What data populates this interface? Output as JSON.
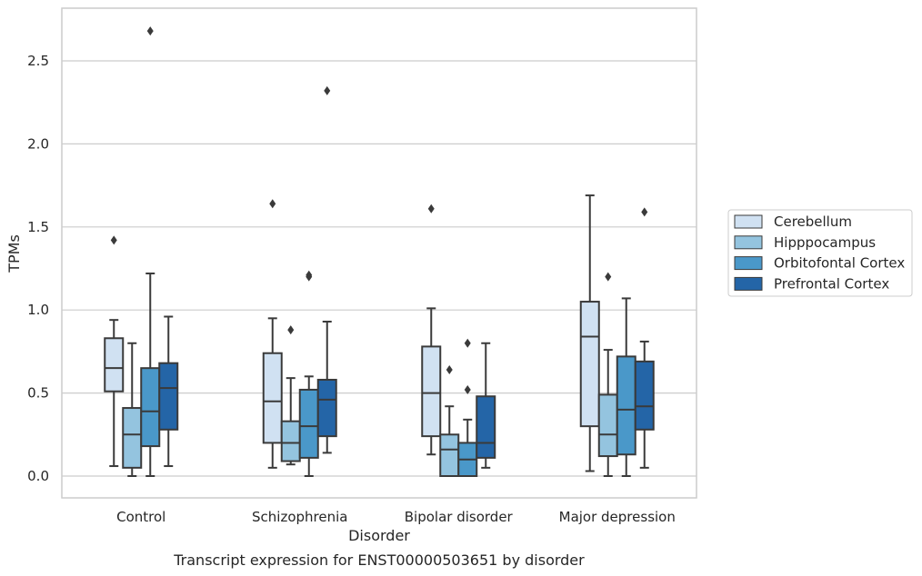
{
  "chart_data": {
    "type": "box",
    "title": "Transcript expression for ENST00000503651 by disorder",
    "xlabel": "Disorder",
    "ylabel": "TPMs",
    "ylim": [
      -0.13,
      2.82
    ],
    "yticks": [
      0.0,
      0.5,
      1.0,
      1.5,
      2.0,
      2.5
    ],
    "ytick_labels": [
      "0.0",
      "0.5",
      "1.0",
      "1.5",
      "2.0",
      "2.5"
    ],
    "grid": "horizontal",
    "legend_position": "right",
    "categories": [
      "Control",
      "Schizophrenia",
      "Bipolar disorder",
      "Major depression"
    ],
    "series": [
      {
        "name": "Cerebellum",
        "color": "#d0e1f2",
        "boxes": [
          {
            "q1": 0.51,
            "median": 0.65,
            "q3": 0.83,
            "whisker_low": 0.06,
            "whisker_high": 0.94,
            "outliers": [
              1.42
            ]
          },
          {
            "q1": 0.2,
            "median": 0.45,
            "q3": 0.74,
            "whisker_low": 0.05,
            "whisker_high": 0.95,
            "outliers": [
              1.64
            ]
          },
          {
            "q1": 0.24,
            "median": 0.5,
            "q3": 0.78,
            "whisker_low": 0.13,
            "whisker_high": 1.01,
            "outliers": [
              1.61
            ]
          },
          {
            "q1": 0.3,
            "median": 0.84,
            "q3": 1.05,
            "whisker_low": 0.03,
            "whisker_high": 1.69,
            "outliers": []
          }
        ]
      },
      {
        "name": "Hipppocampus",
        "color": "#94c4df",
        "boxes": [
          {
            "q1": 0.05,
            "median": 0.25,
            "q3": 0.41,
            "whisker_low": 0.0,
            "whisker_high": 0.8,
            "outliers": []
          },
          {
            "q1": 0.09,
            "median": 0.2,
            "q3": 0.33,
            "whisker_low": 0.07,
            "whisker_high": 0.59,
            "outliers": [
              0.88
            ]
          },
          {
            "q1": 0.0,
            "median": 0.16,
            "q3": 0.25,
            "whisker_low": 0.0,
            "whisker_high": 0.42,
            "outliers": [
              0.64
            ]
          },
          {
            "q1": 0.12,
            "median": 0.25,
            "q3": 0.49,
            "whisker_low": 0.0,
            "whisker_high": 0.76,
            "outliers": [
              1.2
            ]
          }
        ]
      },
      {
        "name": "Orbitofontal Cortex",
        "color": "#4a98c9",
        "boxes": [
          {
            "q1": 0.18,
            "median": 0.39,
            "q3": 0.65,
            "whisker_low": 0.0,
            "whisker_high": 1.22,
            "outliers": [
              2.68
            ]
          },
          {
            "q1": 0.11,
            "median": 0.3,
            "q3": 0.52,
            "whisker_low": 0.0,
            "whisker_high": 0.6,
            "outliers": [
              1.2,
              1.21
            ]
          },
          {
            "q1": 0.0,
            "median": 0.1,
            "q3": 0.2,
            "whisker_low": 0.0,
            "whisker_high": 0.34,
            "outliers": [
              0.52,
              0.8
            ]
          },
          {
            "q1": 0.13,
            "median": 0.4,
            "q3": 0.72,
            "whisker_low": 0.0,
            "whisker_high": 1.07,
            "outliers": []
          }
        ]
      },
      {
        "name": "Prefrontal Cortex",
        "color": "#2465a7",
        "boxes": [
          {
            "q1": 0.28,
            "median": 0.53,
            "q3": 0.68,
            "whisker_low": 0.06,
            "whisker_high": 0.96,
            "outliers": []
          },
          {
            "q1": 0.24,
            "median": 0.46,
            "q3": 0.58,
            "whisker_low": 0.14,
            "whisker_high": 0.93,
            "outliers": [
              2.32
            ]
          },
          {
            "q1": 0.11,
            "median": 0.2,
            "q3": 0.48,
            "whisker_low": 0.05,
            "whisker_high": 0.8,
            "outliers": []
          },
          {
            "q1": 0.28,
            "median": 0.42,
            "q3": 0.69,
            "whisker_low": 0.05,
            "whisker_high": 0.81,
            "outliers": [
              1.59
            ]
          }
        ]
      }
    ]
  }
}
